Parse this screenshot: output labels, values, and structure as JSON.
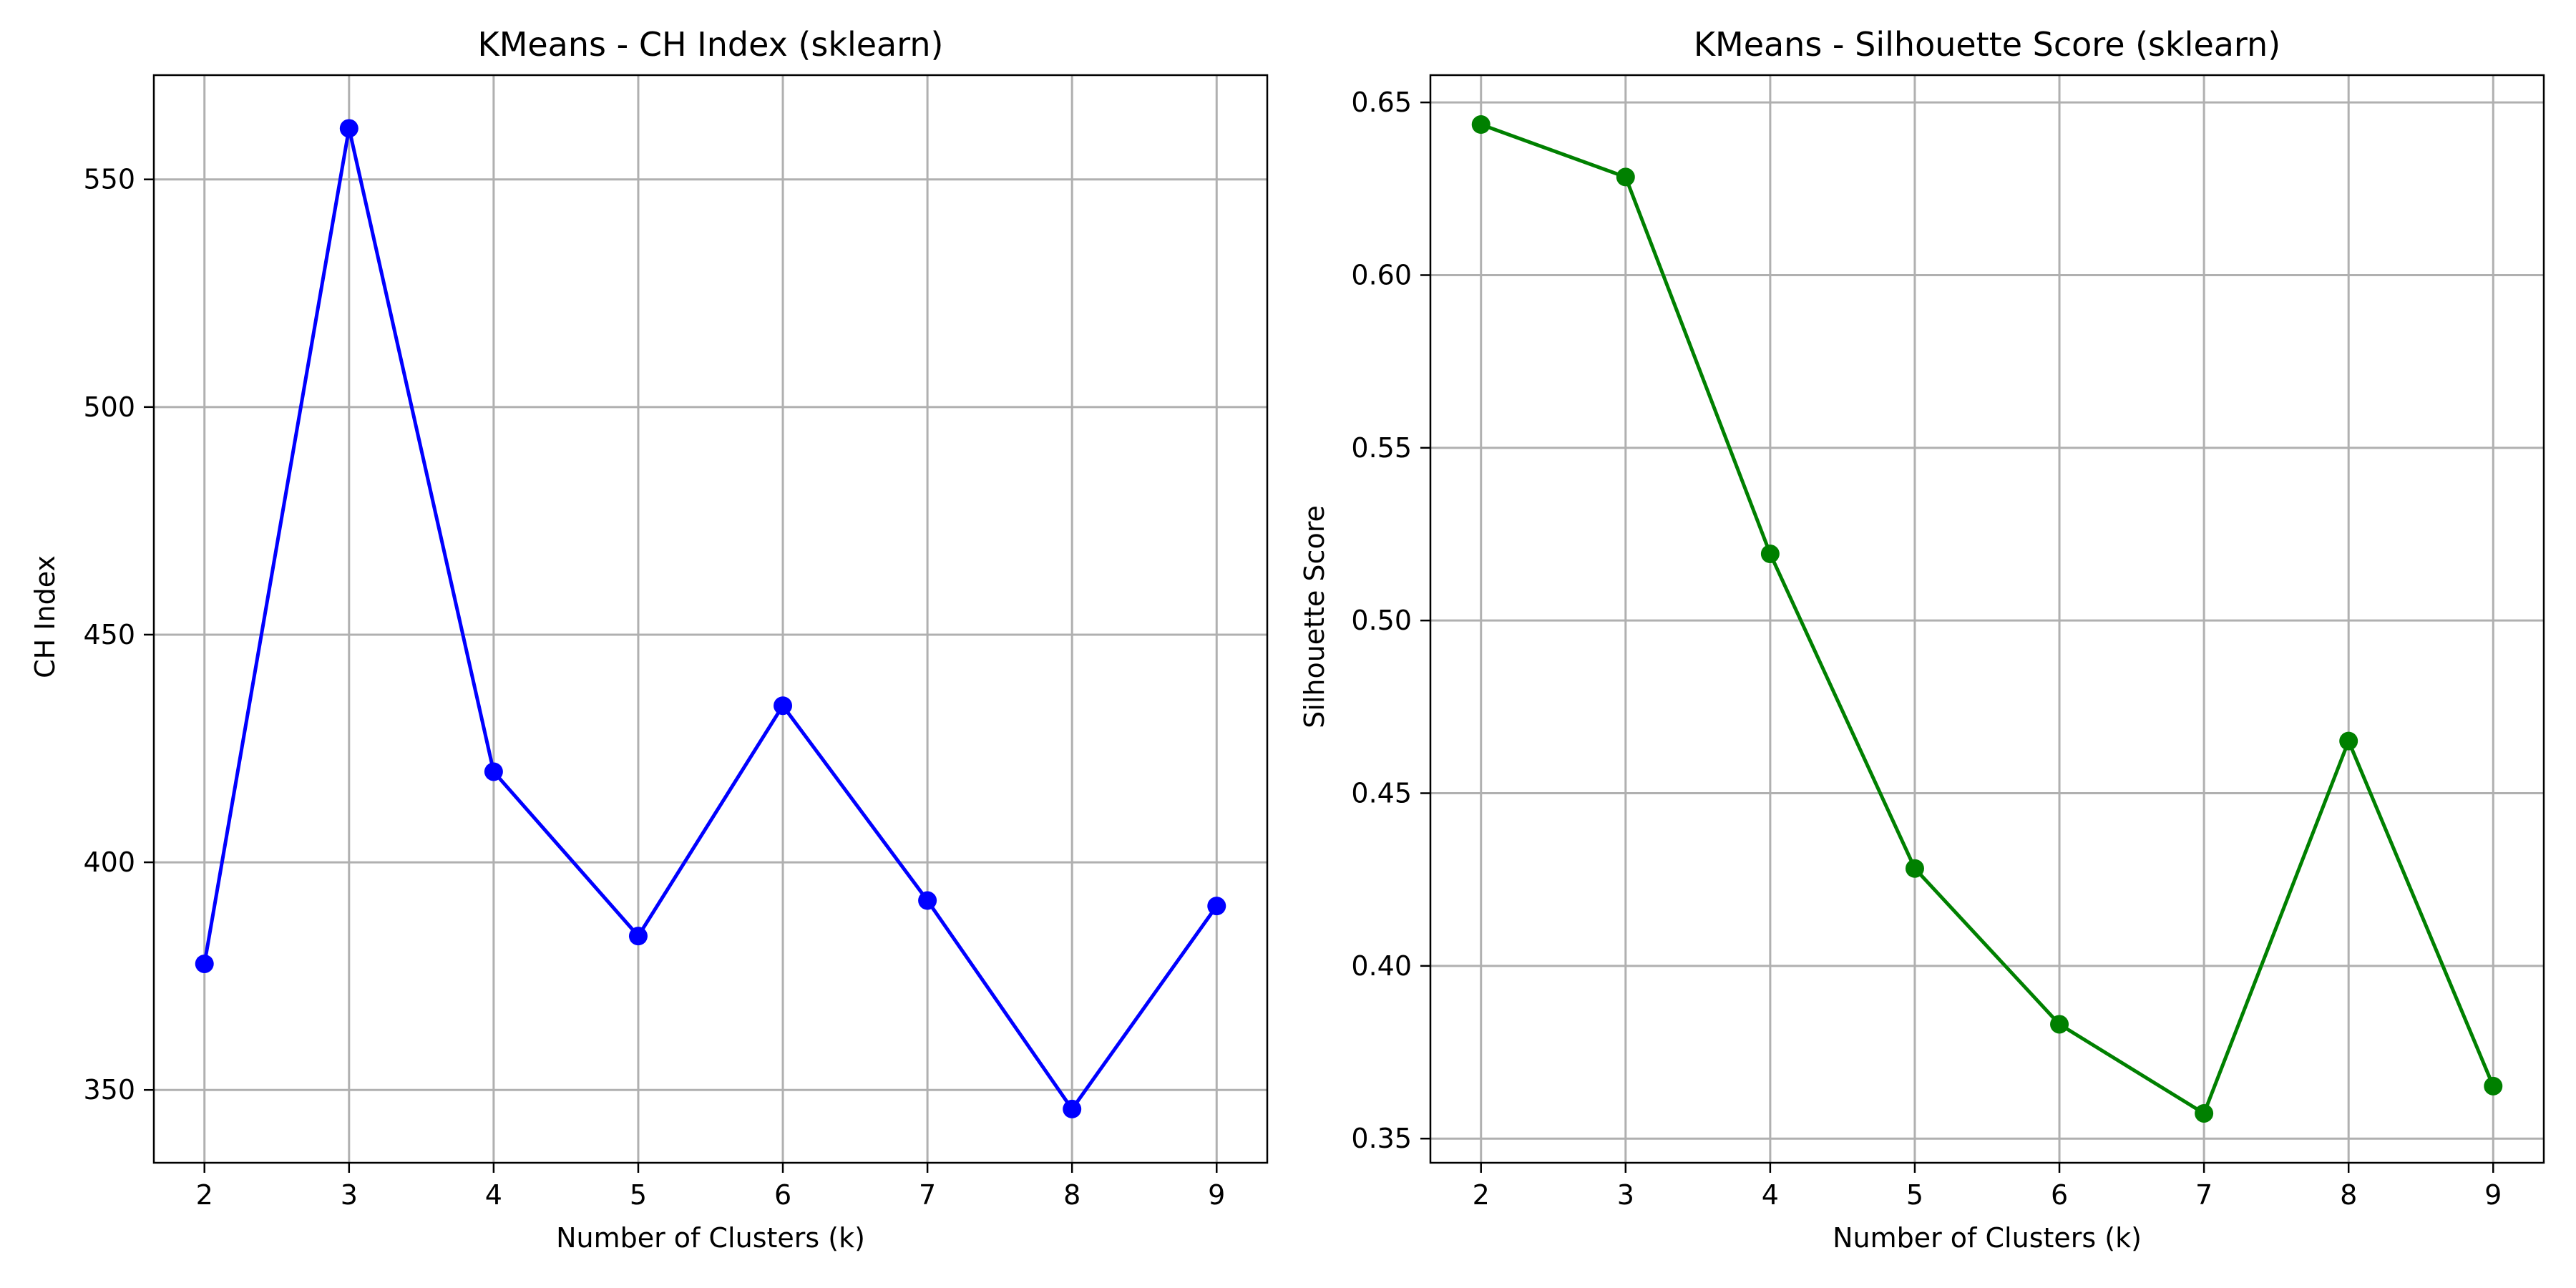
{
  "chart_data": [
    {
      "type": "line",
      "title": "KMeans - CH Index (sklearn)",
      "xlabel": "Number of Clusters (k)",
      "ylabel": "CH Index",
      "x": [
        2,
        3,
        4,
        5,
        6,
        7,
        8,
        9
      ],
      "series": [
        {
          "values": [
            377.7,
            561.2,
            419.9,
            383.8,
            434.4,
            391.6,
            345.8,
            390.4
          ],
          "color": "#0000ff",
          "marker": "circle"
        }
      ],
      "xlim": [
        1.65,
        9.35
      ],
      "ylim": [
        334.0,
        572.9
      ],
      "xticks": [
        "2",
        "3",
        "4",
        "5",
        "6",
        "7",
        "8",
        "9"
      ],
      "yticks": [
        "350",
        "400",
        "450",
        "500",
        "550"
      ],
      "grid": true,
      "legend": "none"
    },
    {
      "type": "line",
      "title": "KMeans - Silhouette Score (sklearn)",
      "xlabel": "Number of Clusters (k)",
      "ylabel": "Silhouette Score",
      "x": [
        2,
        3,
        4,
        5,
        6,
        7,
        8,
        9
      ],
      "series": [
        {
          "values": [
            0.6436,
            0.6284,
            0.5193,
            0.4282,
            0.3831,
            0.3573,
            0.4651,
            0.3652
          ],
          "color": "#008000",
          "marker": "circle"
        }
      ],
      "xlim": [
        1.65,
        9.35
      ],
      "ylim": [
        0.343,
        0.6579
      ],
      "xticks": [
        "2",
        "3",
        "4",
        "5",
        "6",
        "7",
        "8",
        "9"
      ],
      "yticks": [
        "0.35",
        "0.40",
        "0.45",
        "0.50",
        "0.55",
        "0.60",
        "0.65"
      ],
      "grid": true,
      "legend": "none"
    }
  ]
}
